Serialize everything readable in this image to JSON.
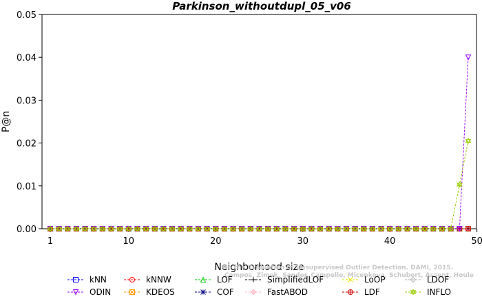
{
  "chart_data": {
    "type": "line",
    "title": "Parkinson_withoutdupl_05_v06",
    "xlabel": "Neighborhood size",
    "ylabel": "P@n",
    "xlim": [
      0,
      50
    ],
    "ylim": [
      0,
      0.05
    ],
    "xticks": [
      1,
      10,
      20,
      30,
      40,
      50
    ],
    "yticks": [
      0,
      0.01,
      0.02,
      0.03,
      0.04,
      0.05
    ],
    "ytick_labels": [
      "0.00",
      "0.01",
      "0.02",
      "0.03",
      "0.04",
      "0.05"
    ],
    "x": [
      1,
      2,
      3,
      4,
      5,
      6,
      7,
      8,
      9,
      10,
      11,
      12,
      13,
      14,
      15,
      16,
      17,
      18,
      19,
      20,
      21,
      22,
      23,
      24,
      25,
      26,
      27,
      28,
      29,
      30,
      31,
      32,
      33,
      34,
      35,
      36,
      37,
      38,
      39,
      40,
      41,
      42,
      43,
      44,
      45,
      46,
      47,
      48,
      49
    ],
    "legend_placement": "bottom",
    "series": [
      {
        "name": "kNN",
        "color": "#0000ff",
        "marker": "square",
        "values": {
          "zero": true
        }
      },
      {
        "name": "kNNW",
        "color": "#ff0000",
        "marker": "circle",
        "values": {
          "zero": true
        }
      },
      {
        "name": "LOF",
        "color": "#00cc00",
        "marker": "triangle-up",
        "values": {
          "zero": true
        }
      },
      {
        "name": "SimplifiedLOF",
        "color": "#000000",
        "marker": "plus",
        "values": {
          "zero": true
        }
      },
      {
        "name": "LoOP",
        "color": "#e6e600",
        "marker": "x",
        "values": {
          "zero": true
        }
      },
      {
        "name": "LDOF",
        "color": "#b0b0b0",
        "marker": "diamond",
        "values": {
          "zero": true
        }
      },
      {
        "name": "ODIN",
        "color": "#9900ff",
        "marker": "triangle-down",
        "values": {
          "zero": true,
          "overrides": {
            "49": 0.04
          }
        }
      },
      {
        "name": "KDEOS",
        "color": "#ff9900",
        "marker": "square-x",
        "values": {
          "zero": true
        }
      },
      {
        "name": "COF",
        "color": "#000080",
        "marker": "asterisk",
        "values": {
          "zero": true
        }
      },
      {
        "name": "FastABOD",
        "color": "#ffb6c1",
        "marker": "diamond-plus",
        "values": {
          "zero": true
        }
      },
      {
        "name": "LDF",
        "color": "#cc0000",
        "marker": "circle-plus",
        "values": {
          "zero": true
        }
      },
      {
        "name": "INFLO",
        "color": "#99cc00",
        "marker": "star",
        "values": {
          "zero": true,
          "overrides": {
            "47": 0.0,
            "48": 0.0103,
            "49": 0.0205
          }
        }
      }
    ],
    "watermark": [
      "Campos, Zimek, Sander, Campello, Micenkova, Schubert, Assent, Houle",
      "On the Evaluation of Unsupervised Outlier Detection. DAMI, 2015."
    ]
  }
}
